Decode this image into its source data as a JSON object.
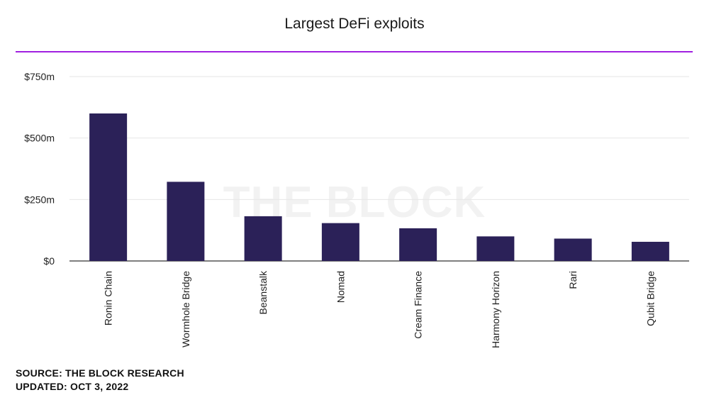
{
  "accent_color": "#a020e0",
  "bar_color": "#2b2158",
  "watermark": "THE BLOCK",
  "footer": {
    "source": "SOURCE: THE BLOCK RESEARCH",
    "updated": "UPDATED: OCT 3, 2022"
  },
  "chart_data": {
    "type": "bar",
    "title": "Largest DeFi exploits",
    "xlabel": "",
    "ylabel": "",
    "ylim": [
      0,
      750
    ],
    "yticks": [
      0,
      250,
      500,
      750
    ],
    "ytick_labels": [
      "$0",
      "$250m",
      "$500m",
      "$750m"
    ],
    "grid": true,
    "categories": [
      "Ronin Chain",
      "Wormhole Bridge",
      "Beanstalk",
      "Nomad",
      "Cream Finance",
      "Harmony Horizon",
      "Rari",
      "Qubit Bridge"
    ],
    "values": [
      600,
      322,
      182,
      154,
      133,
      100,
      91,
      78
    ]
  }
}
